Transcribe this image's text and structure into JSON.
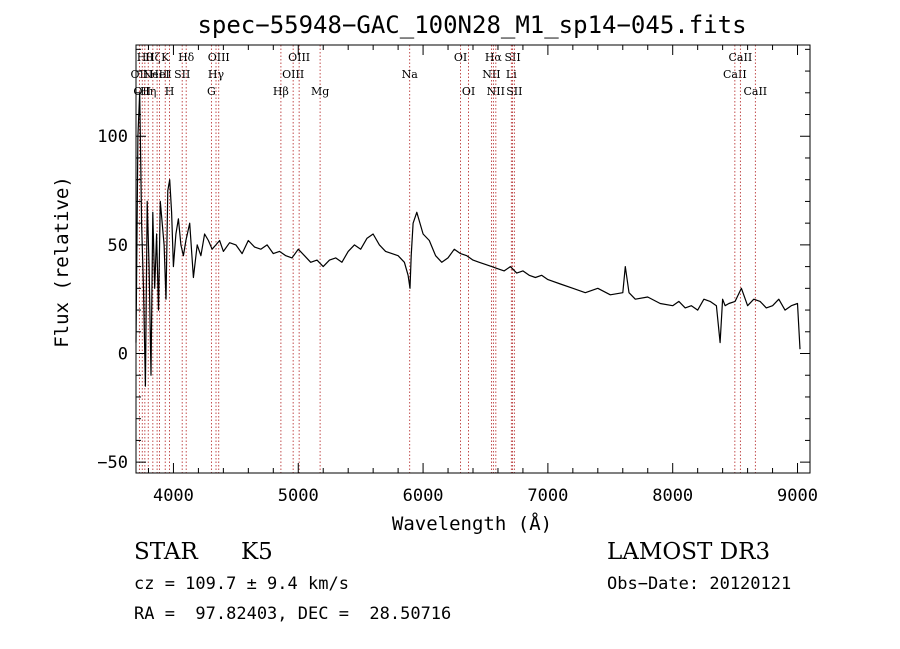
{
  "chart_data": {
    "type": "line",
    "title": "spec−55948−GAC_100N28_M1_sp14−045.fits",
    "xlabel": "Wavelength (Å)",
    "ylabel": "Flux (relative)",
    "xlim": [
      3700,
      9100
    ],
    "ylim": [
      -55,
      142
    ],
    "xticks": [
      4000,
      5000,
      6000,
      7000,
      8000,
      9000
    ],
    "xtick_labels": [
      "4000",
      "5000",
      "6000",
      "7000",
      "8000",
      "9000"
    ],
    "yticks": [
      -50,
      0,
      50,
      100
    ],
    "ytick_labels": [
      "−50",
      "0",
      "50",
      "100"
    ],
    "series": [
      {
        "name": "flux",
        "color": "#000000",
        "x": [
          3700,
          3715,
          3730,
          3745,
          3760,
          3775,
          3790,
          3805,
          3820,
          3835,
          3850,
          3865,
          3880,
          3895,
          3910,
          3925,
          3940,
          3955,
          3970,
          3985,
          4000,
          4020,
          4040,
          4060,
          4080,
          4100,
          4130,
          4160,
          4190,
          4220,
          4250,
          4280,
          4310,
          4340,
          4370,
          4400,
          4450,
          4500,
          4550,
          4600,
          4650,
          4700,
          4750,
          4800,
          4850,
          4900,
          4950,
          5000,
          5050,
          5100,
          5150,
          5200,
          5250,
          5300,
          5350,
          5400,
          5450,
          5500,
          5550,
          5600,
          5650,
          5700,
          5750,
          5800,
          5850,
          5880,
          5895,
          5905,
          5920,
          5950,
          6000,
          6050,
          6100,
          6150,
          6200,
          6250,
          6300,
          6350,
          6400,
          6450,
          6500,
          6550,
          6600,
          6650,
          6700,
          6750,
          6800,
          6850,
          6900,
          6950,
          7000,
          7100,
          7200,
          7300,
          7400,
          7500,
          7600,
          7620,
          7650,
          7700,
          7800,
          7900,
          8000,
          8050,
          8100,
          8150,
          8200,
          8250,
          8300,
          8350,
          8380,
          8400,
          8420,
          8450,
          8500,
          8550,
          8600,
          8650,
          8700,
          8750,
          8800,
          8850,
          8900,
          8950,
          9000,
          9020
        ],
        "y": [
          5,
          100,
          120,
          60,
          30,
          -15,
          70,
          40,
          -10,
          65,
          30,
          55,
          20,
          70,
          60,
          50,
          25,
          75,
          80,
          65,
          40,
          55,
          62,
          50,
          45,
          52,
          60,
          35,
          50,
          45,
          55,
          52,
          48,
          50,
          52,
          47,
          51,
          50,
          46,
          52,
          49,
          48,
          50,
          46,
          47,
          45,
          44,
          48,
          45,
          42,
          43,
          40,
          43,
          44,
          42,
          47,
          50,
          48,
          53,
          55,
          50,
          47,
          46,
          45,
          42,
          36,
          30,
          45,
          60,
          65,
          55,
          52,
          45,
          42,
          44,
          48,
          46,
          45,
          43,
          42,
          41,
          40,
          39,
          38,
          40,
          37,
          38,
          36,
          35,
          36,
          34,
          32,
          30,
          28,
          30,
          27,
          28,
          40,
          28,
          25,
          26,
          23,
          22,
          24,
          21,
          22,
          20,
          25,
          24,
          22,
          5,
          25,
          22,
          23,
          24,
          30,
          22,
          25,
          24,
          21,
          22,
          25,
          20,
          22,
          23,
          2
        ]
      }
    ],
    "line_markers": [
      {
        "wave": 3727,
        "label": "OII",
        "row": 2
      },
      {
        "wave": 3750,
        "label": "OII",
        "row": 3
      },
      {
        "wave": 3771,
        "label": "Hθ",
        "row": 1
      },
      {
        "wave": 3798,
        "label": "Hη",
        "row": 3
      },
      {
        "wave": 3835,
        "label": "Hζ",
        "row": 1
      },
      {
        "wave": 3869,
        "label": "NeIII",
        "row": 2
      },
      {
        "wave": 3889,
        "label": "HeI",
        "row": 2
      },
      {
        "wave": 3934,
        "label": "K",
        "row": 1
      },
      {
        "wave": 3969,
        "label": "H",
        "row": 3
      },
      {
        "wave": 4070,
        "label": "SII",
        "row": 2
      },
      {
        "wave": 4102,
        "label": "Hδ",
        "row": 1
      },
      {
        "wave": 4304,
        "label": "G",
        "row": 3
      },
      {
        "wave": 4341,
        "label": "Hγ",
        "row": 2
      },
      {
        "wave": 4363,
        "label": "OIII",
        "row": 1
      },
      {
        "wave": 4861,
        "label": "Hβ",
        "row": 3
      },
      {
        "wave": 4959,
        "label": "OIII",
        "row": 2
      },
      {
        "wave": 5007,
        "label": "OIII",
        "row": 1
      },
      {
        "wave": 5175,
        "label": "Mg",
        "row": 3
      },
      {
        "wave": 5893,
        "label": "Na",
        "row": 2
      },
      {
        "wave": 6300,
        "label": "OI",
        "row": 1
      },
      {
        "wave": 6364,
        "label": "OI",
        "row": 3
      },
      {
        "wave": 6548,
        "label": "NII",
        "row": 2
      },
      {
        "wave": 6563,
        "label": "Hα",
        "row": 1
      },
      {
        "wave": 6583,
        "label": "NII",
        "row": 3
      },
      {
        "wave": 6707,
        "label": "Li",
        "row": 2
      },
      {
        "wave": 6717,
        "label": "SII",
        "row": 1
      },
      {
        "wave": 6731,
        "label": "SII",
        "row": 3
      },
      {
        "wave": 8498,
        "label": "CaII",
        "row": 2
      },
      {
        "wave": 8542,
        "label": "CaII",
        "row": 1
      },
      {
        "wave": 8662,
        "label": "CaII",
        "row": 3
      }
    ]
  },
  "info": {
    "class_label": "STAR",
    "subclass": "K5",
    "survey": "LAMOST DR3",
    "redshift": "cz = 109.7 ± 9.4 km/s",
    "obs_date": "Obs−Date: 20120121",
    "coords": "RA =  97.82403, DEC =  28.50716"
  },
  "colors": {
    "spectrum": "#000000",
    "marker_line": "#b22222",
    "axes": "#000000"
  }
}
